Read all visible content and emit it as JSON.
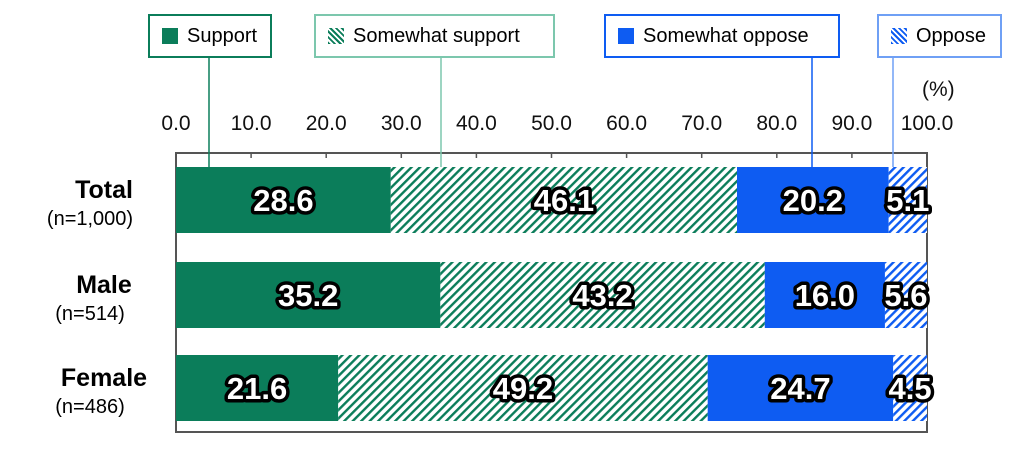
{
  "unit_label": "(%)",
  "colors": {
    "support": "#0b7d5a",
    "somewhat_support": "#0b7d5a",
    "somewhat_oppose": "#0e5cf2",
    "oppose": "#0e5cf2"
  },
  "chart_data": {
    "type": "bar",
    "orientation": "horizontal",
    "stacked": true,
    "categories": [
      "Total",
      "Male",
      "Female"
    ],
    "category_sublabels": [
      "(n=1,000)",
      "(n=514)",
      "(n=486)"
    ],
    "xlim": [
      0,
      100
    ],
    "x_ticks": [
      "0.0",
      "10.0",
      "20.0",
      "30.0",
      "40.0",
      "50.0",
      "60.0",
      "70.0",
      "80.0",
      "90.0",
      "100.0"
    ],
    "legend_position": "top",
    "series": [
      {
        "name": "Support",
        "values": [
          28.6,
          35.2,
          21.6
        ],
        "labels": [
          "28.6",
          "35.2",
          "21.6"
        ]
      },
      {
        "name": "Somewhat support",
        "values": [
          46.1,
          43.2,
          49.2
        ],
        "labels": [
          "46.1",
          "43.2",
          "49.2"
        ]
      },
      {
        "name": "Somewhat oppose",
        "values": [
          20.2,
          16.0,
          24.7
        ],
        "labels": [
          "20.2",
          "16.0",
          "24.7"
        ]
      },
      {
        "name": "Oppose",
        "values": [
          5.1,
          5.6,
          4.5
        ],
        "labels": [
          "5.1",
          "5.6",
          "4.5"
        ]
      }
    ]
  }
}
